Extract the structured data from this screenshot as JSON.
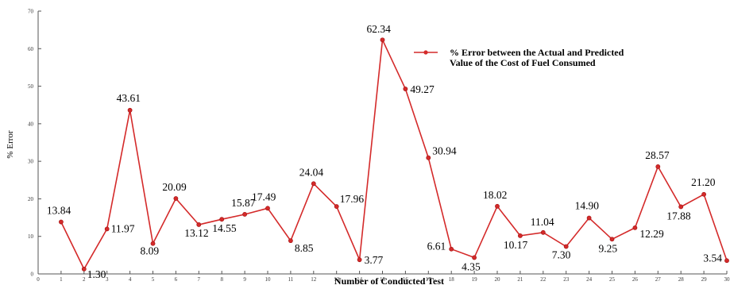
{
  "chart_data": {
    "type": "line",
    "xlabel": "Number of Conducted Test",
    "ylabel": "% Error",
    "xlim": [
      0,
      30
    ],
    "ylim": [
      0,
      70
    ],
    "xticks": [
      0,
      1,
      2,
      3,
      4,
      5,
      6,
      7,
      8,
      9,
      10,
      11,
      12,
      13,
      14,
      15,
      16,
      17,
      18,
      19,
      20,
      21,
      22,
      23,
      24,
      25,
      26,
      27,
      28,
      29,
      30
    ],
    "yticks": [
      0,
      10,
      20,
      30,
      40,
      50,
      60,
      70
    ],
    "grid": false,
    "legend_position": "top-right",
    "series": [
      {
        "name": "% Error between the Actual and Predicted Value of the Cost of Fuel Consumed",
        "legend_lines": [
          "% Error between the Actual and Predicted",
          "Value of the Cost of Fuel Consumed"
        ],
        "color": "#d42a2a",
        "x": [
          1,
          2,
          3,
          4,
          5,
          6,
          7,
          8,
          9,
          10,
          11,
          12,
          13,
          14,
          15,
          16,
          17,
          18,
          19,
          20,
          21,
          22,
          23,
          24,
          25,
          26,
          27,
          28,
          29,
          30
        ],
        "y": [
          13.84,
          1.3,
          11.97,
          43.61,
          8.09,
          20.09,
          13.12,
          14.55,
          15.87,
          17.49,
          8.85,
          24.04,
          17.96,
          3.77,
          62.34,
          49.27,
          30.94,
          6.61,
          4.35,
          18.02,
          10.17,
          11.04,
          7.3,
          14.9,
          9.25,
          12.29,
          28.57,
          17.88,
          21.2,
          3.54
        ],
        "labels": [
          "13.84",
          "1.30",
          "11.97",
          "43.61",
          "8.09",
          "20.09",
          "13.12",
          "14.55",
          "15.87",
          "17.49",
          "8.85",
          "24.04",
          "17.96",
          "3.77",
          "62.34",
          "49.27",
          "30.94",
          "6.61",
          "4.35",
          "18.02",
          "10.17",
          "11.04",
          "7.30",
          "14.90",
          "9.25",
          "12.29",
          "28.57",
          "17.88",
          "21.20",
          "3.54"
        ]
      }
    ]
  }
}
